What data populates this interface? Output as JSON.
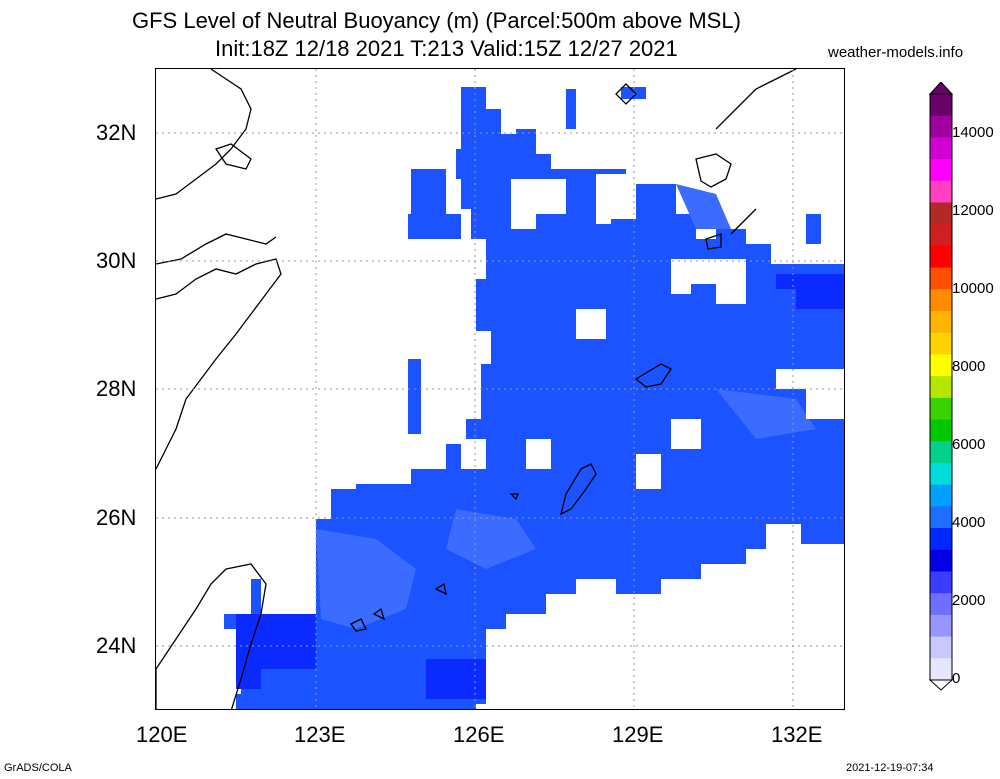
{
  "header": {
    "title_line1": "GFS Level of Neutral Buoyancy (m) (Parcel:500m above MSL)",
    "title_line2": "Init:18Z 12/18 2021 T:213 Valid:15Z 12/27 2021",
    "site": "weather-models.info"
  },
  "axes": {
    "lat_labels": [
      "32N",
      "30N",
      "28N",
      "26N",
      "24N"
    ],
    "lon_labels": [
      "120E",
      "123E",
      "126E",
      "129E",
      "132E"
    ]
  },
  "colorbar": {
    "labels": [
      "14000",
      "12000",
      "10000",
      "8000",
      "6000",
      "4000",
      "2000",
      "0"
    ],
    "colors": [
      "#6a006a",
      "#a000a0",
      "#d200d2",
      "#ff00ff",
      "#ff40c0",
      "#b42828",
      "#d21e1e",
      "#ff0000",
      "#ff5000",
      "#ff8c00",
      "#ffb400",
      "#ffd200",
      "#ffff00",
      "#b4e600",
      "#3cd200",
      "#00c800",
      "#00d28c",
      "#00dcdc",
      "#00a0ff",
      "#1e6eff",
      "#0028ff",
      "#0000e6",
      "#3c3cff",
      "#6e6eff",
      "#9696ff",
      "#c8c8ff",
      "#e6e6ff"
    ]
  },
  "footer": {
    "credit": "GrADS/COLA",
    "timestamp": "2021-12-19-07:34"
  }
}
